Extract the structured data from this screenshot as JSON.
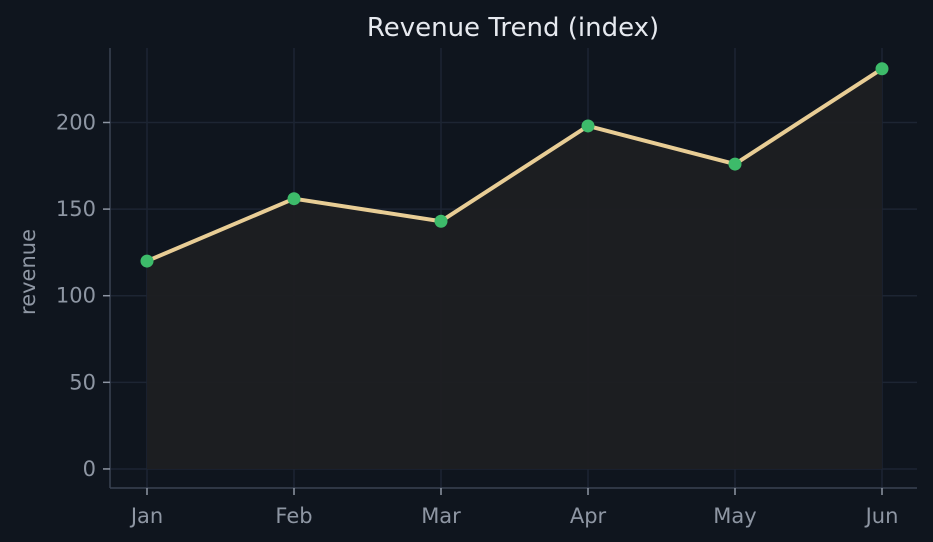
{
  "chart_data": {
    "type": "line",
    "title": "Revenue Trend (index)",
    "xlabel": "",
    "ylabel": "revenue",
    "categories": [
      "Jan",
      "Feb",
      "Mar",
      "Apr",
      "May",
      "Jun"
    ],
    "series": [
      {
        "values": [
          120,
          156,
          143,
          198,
          176,
          231
        ]
      }
    ],
    "ylim": [
      -11,
      243
    ],
    "yticks": [
      0,
      50,
      100,
      150,
      200
    ],
    "ytick_labels": [
      "0",
      "50",
      "100",
      "150",
      "200"
    ],
    "grid": true,
    "area_fill": true,
    "colors": {
      "background": "#0f151e",
      "line": "#e8cd95",
      "marker": "#3dbb6a",
      "area": "#1d1f22",
      "grid": "#1d2533",
      "axis": "#3a4352",
      "text": "#8e96a3",
      "title": "#e6e9ef"
    }
  }
}
